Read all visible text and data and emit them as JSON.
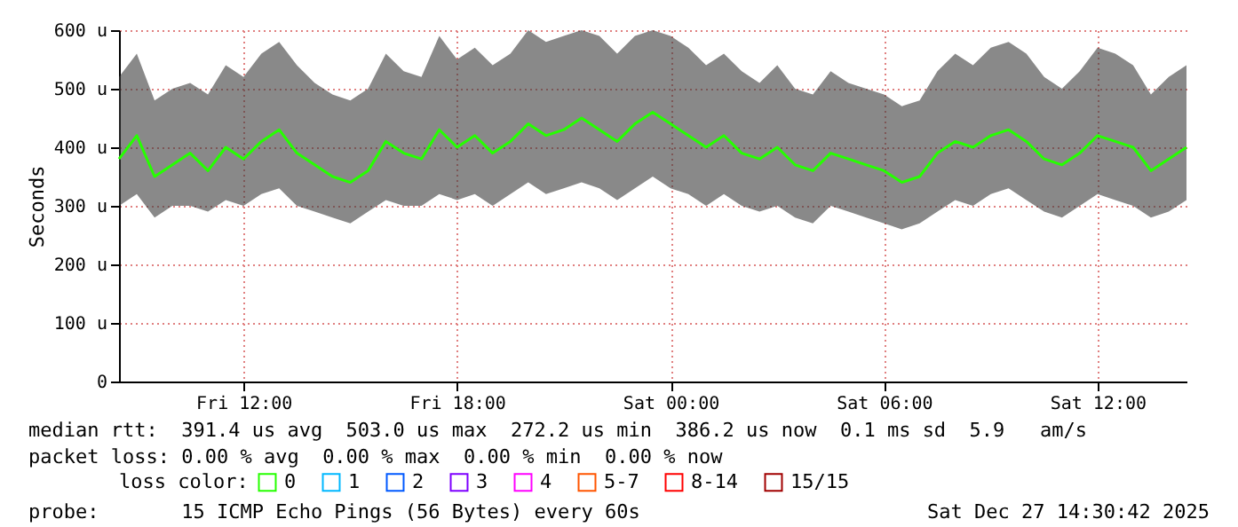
{
  "chart_data": {
    "type": "line",
    "ylabel": "Seconds",
    "legend_title": "loss color:",
    "legend": "bottom",
    "grid": true,
    "marker": "none",
    "line_style": "solid",
    "xlim": [
      "2025-12-26T08:30",
      "2025-12-27T14:30"
    ],
    "xticks": [
      {
        "value": "2025-12-26T12:00",
        "label": "Fri 12:00"
      },
      {
        "value": "2025-12-26T18:00",
        "label": "Fri 18:00"
      },
      {
        "value": "2025-12-27T00:00",
        "label": "Sat 00:00"
      },
      {
        "value": "2025-12-27T06:00",
        "label": "Sat 06:00"
      },
      {
        "value": "2025-12-27T12:00",
        "label": "Sat 12:00"
      }
    ],
    "ylim": [
      0,
      600
    ],
    "yticks": [
      0,
      {
        "value": 100,
        "label": "100 u"
      },
      {
        "value": 200,
        "label": "200 u"
      },
      {
        "value": 300,
        "label": "300 u"
      },
      {
        "value": 400,
        "label": "400 u"
      },
      {
        "value": 500,
        "label": "500 u"
      },
      {
        "value": 600,
        "label": "600 u"
      }
    ],
    "x": [
      "2025-12-26T08:30",
      "2025-12-26T09:00",
      "2025-12-26T09:30",
      "2025-12-26T10:00",
      "2025-12-26T10:30",
      "2025-12-26T11:00",
      "2025-12-26T11:30",
      "2025-12-26T12:00",
      "2025-12-26T12:30",
      "2025-12-26T13:00",
      "2025-12-26T13:30",
      "2025-12-26T14:00",
      "2025-12-26T14:30",
      "2025-12-26T15:00",
      "2025-12-26T15:30",
      "2025-12-26T16:00",
      "2025-12-26T16:30",
      "2025-12-26T17:00",
      "2025-12-26T17:30",
      "2025-12-26T18:00",
      "2025-12-26T18:30",
      "2025-12-26T19:00",
      "2025-12-26T19:30",
      "2025-12-26T20:00",
      "2025-12-26T20:30",
      "2025-12-26T21:00",
      "2025-12-26T21:30",
      "2025-12-26T22:00",
      "2025-12-26T22:30",
      "2025-12-26T23:00",
      "2025-12-26T23:30",
      "2025-12-27T00:00",
      "2025-12-27T00:30",
      "2025-12-27T01:00",
      "2025-12-27T01:30",
      "2025-12-27T02:00",
      "2025-12-27T02:30",
      "2025-12-27T03:00",
      "2025-12-27T03:30",
      "2025-12-27T04:00",
      "2025-12-27T04:30",
      "2025-12-27T05:00",
      "2025-12-27T05:30",
      "2025-12-27T06:00",
      "2025-12-27T06:30",
      "2025-12-27T07:00",
      "2025-12-27T07:30",
      "2025-12-27T08:00",
      "2025-12-27T08:30",
      "2025-12-27T09:00",
      "2025-12-27T09:30",
      "2025-12-27T10:00",
      "2025-12-27T10:30",
      "2025-12-27T11:00",
      "2025-12-27T11:30",
      "2025-12-27T12:00",
      "2025-12-27T12:30",
      "2025-12-27T13:00",
      "2025-12-27T13:30",
      "2025-12-27T14:00",
      "2025-12-27T14:30"
    ],
    "series": [
      {
        "name": "0",
        "color": "#26ff00",
        "values": [
          380,
          420,
          350,
          370,
          390,
          360,
          400,
          380,
          410,
          430,
          390,
          370,
          350,
          340,
          360,
          410,
          390,
          380,
          430,
          400,
          420,
          390,
          410,
          440,
          420,
          430,
          450,
          430,
          410,
          440,
          460,
          440,
          420,
          400,
          420,
          390,
          380,
          400,
          370,
          360,
          390,
          380,
          370,
          360,
          340,
          350,
          390,
          410,
          400,
          420,
          430,
          410,
          380,
          370,
          390,
          420,
          410,
          400,
          360,
          380,
          400
        ],
        "lower": [
          300,
          320,
          280,
          300,
          300,
          290,
          310,
          300,
          320,
          330,
          300,
          290,
          280,
          270,
          290,
          310,
          300,
          300,
          320,
          310,
          320,
          300,
          320,
          340,
          320,
          330,
          340,
          330,
          310,
          330,
          350,
          330,
          320,
          300,
          320,
          300,
          290,
          300,
          280,
          270,
          300,
          290,
          280,
          270,
          260,
          270,
          290,
          310,
          300,
          320,
          330,
          310,
          290,
          280,
          300,
          320,
          310,
          300,
          280,
          290,
          310
        ],
        "upper": [
          520,
          560,
          480,
          500,
          510,
          490,
          540,
          520,
          560,
          580,
          540,
          510,
          490,
          480,
          500,
          560,
          530,
          520,
          590,
          550,
          570,
          540,
          560,
          600,
          580,
          590,
          600,
          590,
          560,
          590,
          600,
          590,
          570,
          540,
          560,
          530,
          510,
          540,
          500,
          490,
          530,
          510,
          500,
          490,
          470,
          480,
          530,
          560,
          540,
          570,
          580,
          560,
          520,
          500,
          530,
          570,
          560,
          540,
          490,
          520,
          540
        ]
      },
      {
        "name": "1",
        "color": "#00b8ff",
        "values": [
          null,
          null,
          null,
          null,
          null,
          null,
          null,
          null,
          null,
          null,
          null,
          null,
          null,
          null,
          null,
          null,
          null,
          null,
          null,
          null,
          null,
          null,
          null,
          null,
          null,
          null,
          null,
          null,
          null,
          null,
          null,
          null,
          null,
          null,
          null,
          null,
          null,
          null,
          null,
          null,
          null,
          null,
          null,
          null,
          null,
          null,
          null,
          null,
          null,
          null,
          null,
          null,
          null,
          null,
          null,
          null,
          null,
          null,
          null,
          null,
          null
        ]
      },
      {
        "name": "2",
        "color": "#0059ff",
        "values": [
          null,
          null,
          null,
          null,
          null,
          null,
          null,
          null,
          null,
          null,
          null,
          null,
          null,
          null,
          null,
          null,
          null,
          null,
          null,
          null,
          null,
          null,
          null,
          null,
          null,
          null,
          null,
          null,
          null,
          null,
          null,
          null,
          null,
          null,
          null,
          null,
          null,
          null,
          null,
          null,
          null,
          null,
          null,
          null,
          null,
          null,
          null,
          null,
          null,
          null,
          null,
          null,
          null,
          null,
          null,
          null,
          null,
          null,
          null,
          null,
          null
        ]
      },
      {
        "name": "3",
        "color": "#7e00ff",
        "values": [
          null,
          null,
          null,
          null,
          null,
          null,
          null,
          null,
          null,
          null,
          null,
          null,
          null,
          null,
          null,
          null,
          null,
          null,
          null,
          null,
          null,
          null,
          null,
          null,
          null,
          null,
          null,
          null,
          null,
          null,
          null,
          null,
          null,
          null,
          null,
          null,
          null,
          null,
          null,
          null,
          null,
          null,
          null,
          null,
          null,
          null,
          null,
          null,
          null,
          null,
          null,
          null,
          null,
          null,
          null,
          null,
          null,
          null,
          null,
          null,
          null
        ]
      },
      {
        "name": "4",
        "color": "#ff00ff",
        "values": [
          null,
          null,
          null,
          null,
          null,
          null,
          null,
          null,
          null,
          null,
          null,
          null,
          null,
          null,
          null,
          null,
          null,
          null,
          null,
          null,
          null,
          null,
          null,
          null,
          null,
          null,
          null,
          null,
          null,
          null,
          null,
          null,
          null,
          null,
          null,
          null,
          null,
          null,
          null,
          null,
          null,
          null,
          null,
          null,
          null,
          null,
          null,
          null,
          null,
          null,
          null,
          null,
          null,
          null,
          null,
          null,
          null,
          null,
          null,
          null,
          null
        ]
      },
      {
        "name": "5-7",
        "color": "#ff5500",
        "values": [
          null,
          null,
          null,
          null,
          null,
          null,
          null,
          null,
          null,
          null,
          null,
          null,
          null,
          null,
          null,
          null,
          null,
          null,
          null,
          null,
          null,
          null,
          null,
          null,
          null,
          null,
          null,
          null,
          null,
          null,
          null,
          null,
          null,
          null,
          null,
          null,
          null,
          null,
          null,
          null,
          null,
          null,
          null,
          null,
          null,
          null,
          null,
          null,
          null,
          null,
          null,
          null,
          null,
          null,
          null,
          null,
          null,
          null,
          null,
          null,
          null
        ]
      },
      {
        "name": "8-14",
        "color": "#ff0000",
        "values": [
          null,
          null,
          null,
          null,
          null,
          null,
          null,
          null,
          null,
          null,
          null,
          null,
          null,
          null,
          null,
          null,
          null,
          null,
          null,
          null,
          null,
          null,
          null,
          null,
          null,
          null,
          null,
          null,
          null,
          null,
          null,
          null,
          null,
          null,
          null,
          null,
          null,
          null,
          null,
          null,
          null,
          null,
          null,
          null,
          null,
          null,
          null,
          null,
          null,
          null,
          null,
          null,
          null,
          null,
          null,
          null,
          null,
          null,
          null,
          null,
          null
        ]
      },
      {
        "name": "15/15",
        "color": "#a10000",
        "values": [
          null,
          null,
          null,
          null,
          null,
          null,
          null,
          null,
          null,
          null,
          null,
          null,
          null,
          null,
          null,
          null,
          null,
          null,
          null,
          null,
          null,
          null,
          null,
          null,
          null,
          null,
          null,
          null,
          null,
          null,
          null,
          null,
          null,
          null,
          null,
          null,
          null,
          null,
          null,
          null,
          null,
          null,
          null,
          null,
          null,
          null,
          null,
          null,
          null,
          null,
          null,
          null,
          null,
          null,
          null,
          null,
          null,
          null,
          null,
          null,
          null
        ]
      }
    ],
    "annotations": [
      "median rtt:  391.4 us avg  503.0 us max  272.2 us min  386.2 us now  0.1 ms sd  5.9   am/s",
      "packet loss: 0.00 % avg  0.00 % max  0.00 % min  0.00 % now",
      "probe:       15 ICMP Echo Pings (56 Bytes) every 60s",
      "Sat Dec 27 14:30:42 2025"
    ]
  }
}
